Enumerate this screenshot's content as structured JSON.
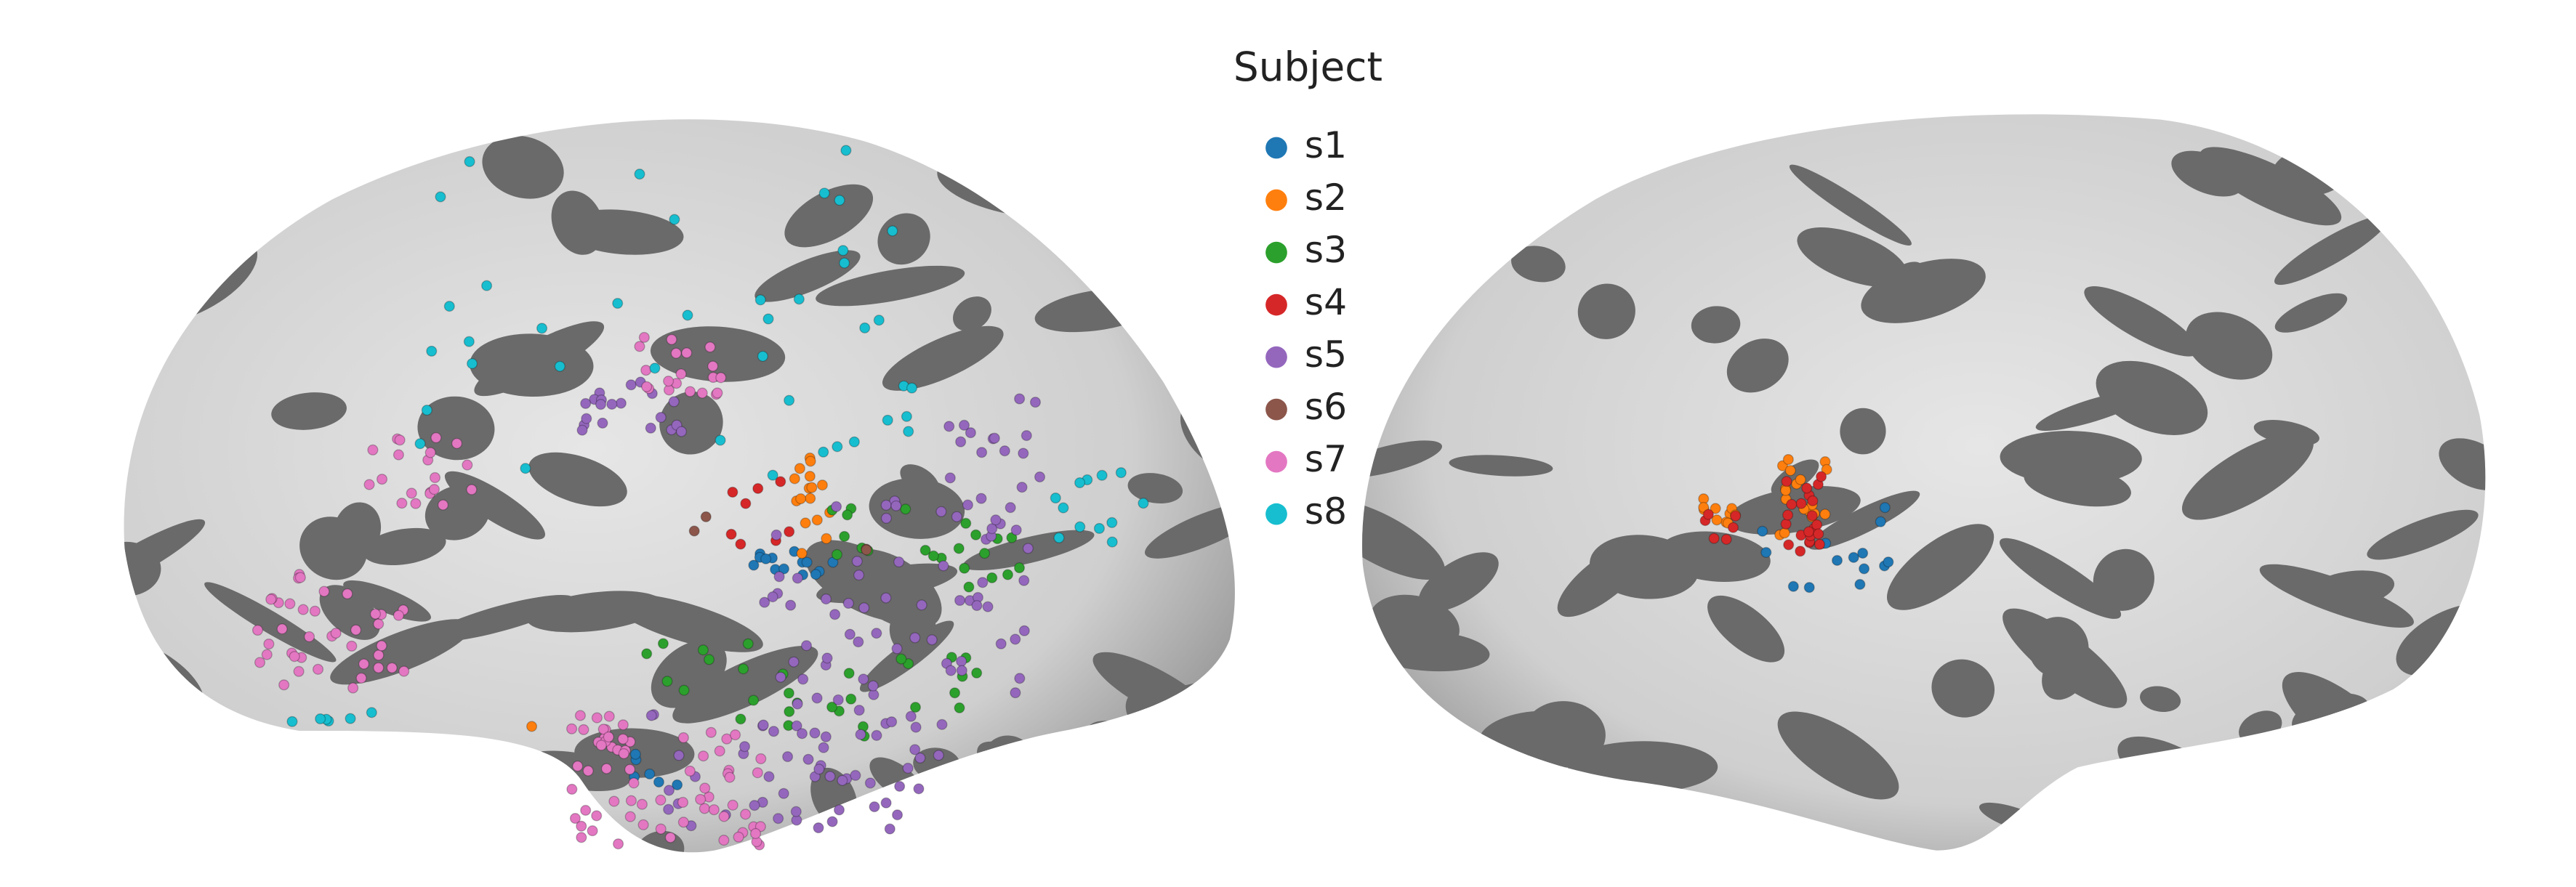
{
  "legend": {
    "title": "Subject",
    "items": [
      {
        "label": "s1",
        "color": "#1f77b4"
      },
      {
        "label": "s2",
        "color": "#ff7f0e"
      },
      {
        "label": "s3",
        "color": "#2ca02c"
      },
      {
        "label": "s4",
        "color": "#d62728"
      },
      {
        "label": "s5",
        "color": "#9467bd"
      },
      {
        "label": "s6",
        "color": "#8c564b"
      },
      {
        "label": "s7",
        "color": "#e377c2"
      },
      {
        "label": "s8",
        "color": "#17becf"
      }
    ]
  }
}
